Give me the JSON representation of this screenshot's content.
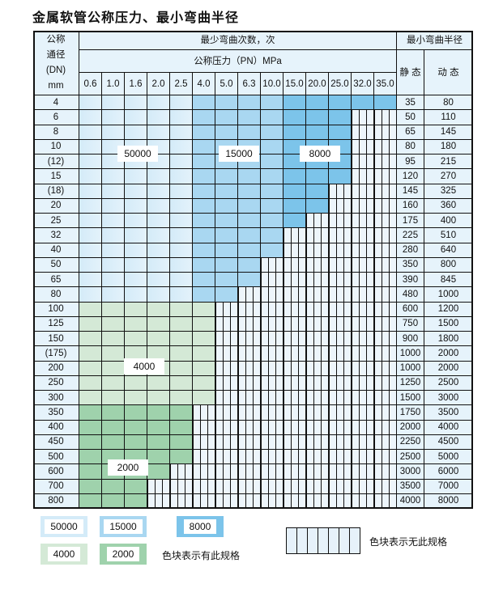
{
  "title": "金属软管公称压力、最小弯曲半径",
  "header": {
    "dn_label": "公称\n通径\n(DN)\nmm",
    "cycles_label": "最少弯曲次数，次",
    "pressure_label": "公称压力（PN）MPa",
    "radius_label": "最小弯曲半径",
    "static_label": "静 态",
    "dynamic_label": "动 态",
    "pressures": [
      "0.6",
      "1.0",
      "1.6",
      "2.0",
      "2.5",
      "4.0",
      "5.0",
      "6.3",
      "10.0",
      "15.0",
      "20.0",
      "25.0",
      "32.0",
      "35.0"
    ]
  },
  "cell_codes": {
    "L": "50000",
    "M": "15000",
    "D": "8000",
    "G": "4000",
    "H": "2000",
    "X": "无此规格"
  },
  "colors": {
    "L": "#d4ebf8",
    "M": "#a9d7f1",
    "D": "#7cc4ea",
    "G": "#d4e9d6",
    "H": "#9fd2ac",
    "X": "#edf5fb"
  },
  "rows": [
    {
      "dn": "4",
      "static": "35",
      "dynamic": "80",
      "cells": "LLLLLMMMMDDDDD"
    },
    {
      "dn": "6",
      "static": "50",
      "dynamic": "110",
      "cells": "LLLLLMMMMDDDXX"
    },
    {
      "dn": "8",
      "static": "65",
      "dynamic": "145",
      "cells": "LLLLLMMMMDDDXX"
    },
    {
      "dn": "10",
      "static": "80",
      "dynamic": "180",
      "cells": "LLLLLMMMMDDDXX"
    },
    {
      "dn": "(12)",
      "static": "95",
      "dynamic": "215",
      "cells": "LLLLLMMMMDDDXX"
    },
    {
      "dn": "15",
      "static": "120",
      "dynamic": "270",
      "cells": "LLLLLMMMMDDDXX"
    },
    {
      "dn": "(18)",
      "static": "145",
      "dynamic": "325",
      "cells": "LLLLLMMMMDDXXX"
    },
    {
      "dn": "20",
      "static": "160",
      "dynamic": "360",
      "cells": "LLLLLMMMMDDXXX"
    },
    {
      "dn": "25",
      "static": "175",
      "dynamic": "400",
      "cells": "LLLLLMMMMDXXXX"
    },
    {
      "dn": "32",
      "static": "225",
      "dynamic": "510",
      "cells": "LLLLLMMMMXXXXX"
    },
    {
      "dn": "40",
      "static": "280",
      "dynamic": "640",
      "cells": "LLLLLMMMMXXXXX"
    },
    {
      "dn": "50",
      "static": "350",
      "dynamic": "800",
      "cells": "LLLLLMMMXXXXXX"
    },
    {
      "dn": "65",
      "static": "390",
      "dynamic": "845",
      "cells": "LLLLLMMMXXXXXX"
    },
    {
      "dn": "80",
      "static": "480",
      "dynamic": "1000",
      "cells": "LLLLLMMXXXXXXX"
    },
    {
      "dn": "100",
      "static": "600",
      "dynamic": "1200",
      "cells": "GGGGGGXXXXXXXX"
    },
    {
      "dn": "125",
      "static": "750",
      "dynamic": "1500",
      "cells": "GGGGGGXXXXXXXX"
    },
    {
      "dn": "150",
      "static": "900",
      "dynamic": "1800",
      "cells": "GGGGGGXXXXXXXX"
    },
    {
      "dn": "(175)",
      "static": "1000",
      "dynamic": "2000",
      "cells": "GGGGGGXXXXXXXX"
    },
    {
      "dn": "200",
      "static": "1000",
      "dynamic": "2000",
      "cells": "GGGGGGXXXXXXXX"
    },
    {
      "dn": "250",
      "static": "1250",
      "dynamic": "2500",
      "cells": "GGGGGGXXXXXXXX"
    },
    {
      "dn": "300",
      "static": "1500",
      "dynamic": "3000",
      "cells": "GGGGGGXXXXXXXX"
    },
    {
      "dn": "350",
      "static": "1750",
      "dynamic": "3500",
      "cells": "HHHHHXXXXXXXXX"
    },
    {
      "dn": "400",
      "static": "2000",
      "dynamic": "4000",
      "cells": "HHHHHXXXXXXXXX"
    },
    {
      "dn": "450",
      "static": "2250",
      "dynamic": "4500",
      "cells": "HHHHHXXXXXXXXX"
    },
    {
      "dn": "500",
      "static": "2500",
      "dynamic": "5000",
      "cells": "HHHHHXXXXXXXXX"
    },
    {
      "dn": "600",
      "static": "3000",
      "dynamic": "6000",
      "cells": "HHHHXXXXXXXXXX"
    },
    {
      "dn": "700",
      "static": "3500",
      "dynamic": "7000",
      "cells": "HHHXXXXXXXXXXX"
    },
    {
      "dn": "800",
      "static": "4000",
      "dynamic": "8000",
      "cells": "HHHXXXXXXXXXXX"
    }
  ],
  "region_labels": {
    "L": "50000",
    "M": "15000",
    "D": "8000",
    "G": "4000",
    "H": "2000"
  },
  "legend": {
    "items": [
      {
        "code": "L",
        "label": "50000",
        "color": "#d4ebf8"
      },
      {
        "code": "M",
        "label": "15000",
        "color": "#a9d7f1"
      },
      {
        "code": "D",
        "label": "8000",
        "color": "#7cc4ea"
      },
      {
        "code": "G",
        "label": "4000",
        "color": "#d4e9d6"
      },
      {
        "code": "H",
        "label": "2000",
        "color": "#9fd2ac"
      }
    ],
    "available_text": "色块表示有此规格",
    "unavailable_text": "色块表示无此规格"
  }
}
